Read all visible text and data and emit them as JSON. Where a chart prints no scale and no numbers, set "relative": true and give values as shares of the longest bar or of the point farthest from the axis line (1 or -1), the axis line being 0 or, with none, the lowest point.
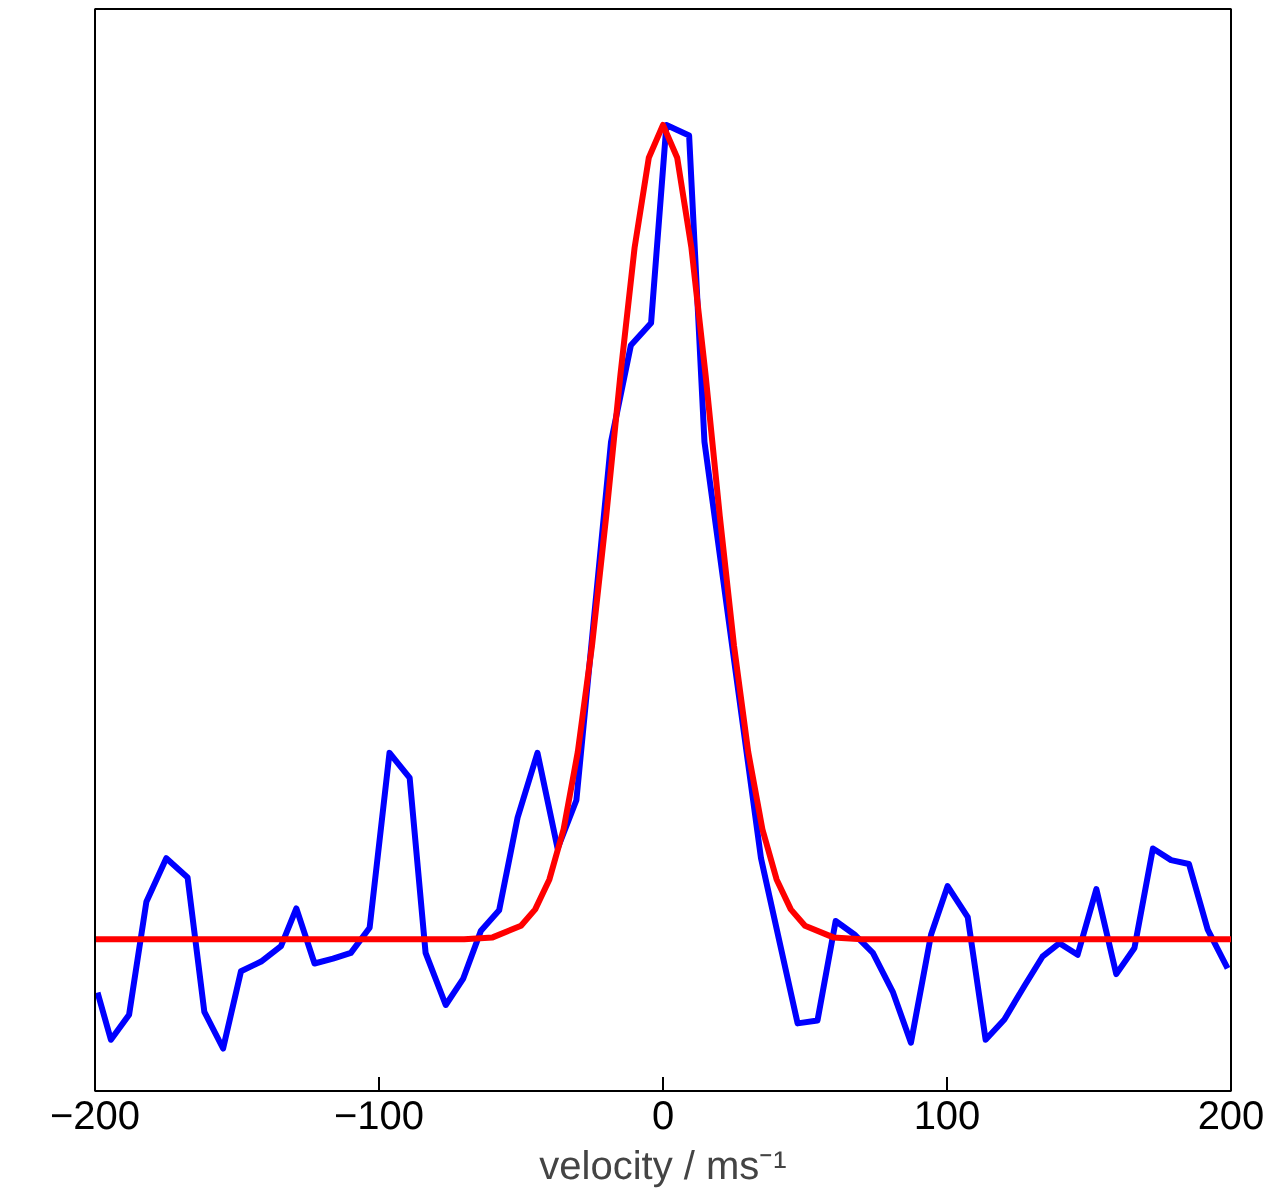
{
  "chart_data": {
    "type": "line",
    "xlabel": "velocity / ms⁻¹",
    "relative": true,
    "tick_labels": "x",
    "grid": false,
    "marker": "none",
    "line_style": "solid",
    "xlim": [
      -200,
      200
    ],
    "xticks": [
      {
        "value": -200,
        "label": "−200"
      },
      {
        "value": -100,
        "label": "−100"
      },
      0,
      100,
      200
    ],
    "series": [
      {
        "color": "#0000ff",
        "x": [
          -199.1,
          -194.4,
          -188.0,
          -181.9,
          -174.9,
          -167.4,
          -161.5,
          -154.9,
          -148.6,
          -141.5,
          -134.5,
          -129.1,
          -122.7,
          -116.2,
          -109.9,
          -103.3,
          -96.3,
          -89.2,
          -83.6,
          -76.5,
          -70.4,
          -64.1,
          -57.7,
          -51.2,
          -44.2,
          -37.1,
          -30.5,
          -18.3,
          -11.3,
          -4.2,
          1.2,
          9.2,
          14.6,
          34.5,
          47.4,
          54.4,
          60.8,
          67.4,
          73.9,
          81.0,
          87.3,
          94.4,
          100.2,
          107.3,
          113.6,
          120.2,
          127.3,
          133.6,
          139.6,
          146.0,
          152.6,
          159.6,
          166.0,
          172.5,
          178.9,
          185.2,
          191.8,
          198.8
        ],
        "values": [
          0.102,
          0.053,
          0.079,
          0.196,
          0.241,
          0.221,
          0.082,
          0.044,
          0.124,
          0.134,
          0.15,
          0.189,
          0.132,
          0.137,
          0.143,
          0.169,
          0.35,
          0.324,
          0.143,
          0.089,
          0.116,
          0.166,
          0.187,
          0.283,
          0.35,
          0.251,
          0.301,
          0.672,
          0.772,
          0.795,
          1.0,
          0.989,
          0.672,
          0.241,
          0.07,
          0.073,
          0.176,
          0.162,
          0.143,
          0.102,
          0.05,
          0.162,
          0.212,
          0.18,
          0.053,
          0.074,
          0.109,
          0.139,
          0.153,
          0.141,
          0.209,
          0.121,
          0.148,
          0.251,
          0.239,
          0.235,
          0.167,
          0.127
        ]
      },
      {
        "color": "#ff0000",
        "x": [
          -200,
          -70,
          -60,
          -50,
          -45,
          -40,
          -35,
          -30,
          -25,
          -20,
          -15,
          -10,
          -5,
          0,
          5,
          10,
          15,
          20,
          25,
          30,
          35,
          40,
          45,
          50,
          60,
          70,
          200
        ],
        "values": [
          0.157,
          0.157,
          0.159,
          0.171,
          0.188,
          0.219,
          0.271,
          0.351,
          0.461,
          0.595,
          0.741,
          0.873,
          0.966,
          1.0,
          0.966,
          0.873,
          0.741,
          0.595,
          0.461,
          0.351,
          0.271,
          0.219,
          0.188,
          0.171,
          0.159,
          0.157,
          0.157
        ]
      }
    ]
  }
}
